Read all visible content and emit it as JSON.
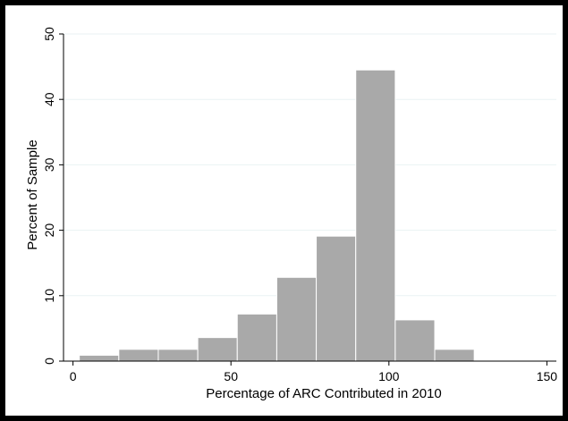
{
  "chart_data": {
    "type": "bar",
    "xlabel": "Percentage of ARC Contributed in 2010",
    "ylabel": "Percent of Sample",
    "xlim": [
      -3,
      153
    ],
    "ylim": [
      0,
      50
    ],
    "x_ticks": [
      0,
      50,
      100,
      150
    ],
    "y_ticks": [
      0,
      10,
      20,
      30,
      40,
      50
    ],
    "grid": true,
    "bar_color": "#a9a9a9",
    "bins": [
      {
        "x0": 2,
        "x1": 14.5,
        "value": 0.9
      },
      {
        "x0": 14.5,
        "x1": 27,
        "value": 1.8
      },
      {
        "x0": 27,
        "x1": 39.5,
        "value": 1.8
      },
      {
        "x0": 39.5,
        "x1": 52,
        "value": 3.6
      },
      {
        "x0": 52,
        "x1": 64.5,
        "value": 7.2
      },
      {
        "x0": 64.5,
        "x1": 77,
        "value": 12.8
      },
      {
        "x0": 77,
        "x1": 89.5,
        "value": 19.1
      },
      {
        "x0": 89.5,
        "x1": 102,
        "value": 44.5
      },
      {
        "x0": 102,
        "x1": 114.5,
        "value": 6.3
      },
      {
        "x0": 114.5,
        "x1": 127,
        "value": 1.8
      }
    ]
  }
}
